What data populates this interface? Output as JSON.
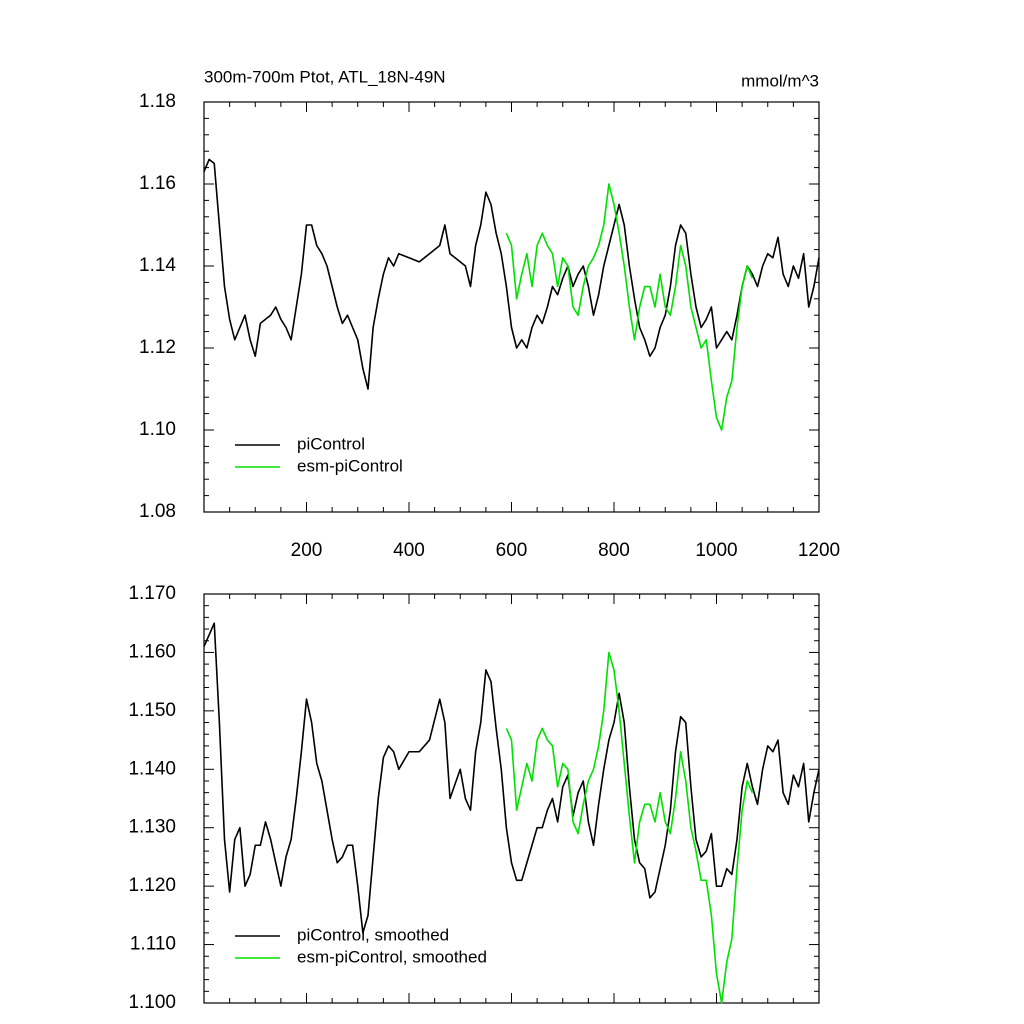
{
  "chart_data": [
    {
      "type": "line",
      "title": "300m-700m Ptot, ATL_18N-49N",
      "units": "mmol/m^3",
      "xlim": [
        0,
        1200
      ],
      "xticks": [
        200,
        400,
        600,
        800,
        1000,
        1200
      ],
      "ylim": [
        1.08,
        1.18
      ],
      "yticks": [
        {
          "value": 1.08,
          "label": "1.08"
        },
        {
          "value": 1.1,
          "label": "1.10"
        },
        1.12,
        1.14,
        1.16,
        1.18
      ],
      "legend": "lower left",
      "series": [
        {
          "name": "piControl",
          "color": "#000000",
          "x": [
            0,
            10,
            20,
            30,
            40,
            50,
            60,
            70,
            80,
            90,
            100,
            110,
            120,
            130,
            140,
            150,
            160,
            170,
            180,
            190,
            200,
            210,
            220,
            230,
            240,
            250,
            260,
            270,
            280,
            290,
            300,
            310,
            320,
            330,
            340,
            350,
            360,
            370,
            380,
            400,
            420,
            440,
            460,
            470,
            480,
            500,
            510,
            520,
            530,
            540,
            550,
            560,
            570,
            580,
            590,
            600,
            610,
            620,
            630,
            640,
            650,
            660,
            670,
            680,
            690,
            700,
            710,
            720,
            730,
            740,
            750,
            760,
            770,
            780,
            790,
            800,
            810,
            820,
            830,
            840,
            850,
            860,
            870,
            880,
            890,
            900,
            910,
            920,
            930,
            940,
            950,
            960,
            970,
            980,
            990,
            1000,
            1010,
            1020,
            1030,
            1040,
            1050,
            1060,
            1070,
            1080,
            1090,
            1100,
            1110,
            1120,
            1130,
            1140,
            1150,
            1160,
            1170,
            1180,
            1190,
            1200
          ],
          "values": [
            1.163,
            1.166,
            1.165,
            1.15,
            1.135,
            1.127,
            1.122,
            1.125,
            1.128,
            1.122,
            1.118,
            1.126,
            1.127,
            1.128,
            1.13,
            1.127,
            1.125,
            1.122,
            1.13,
            1.138,
            1.15,
            1.15,
            1.145,
            1.143,
            1.14,
            1.135,
            1.13,
            1.126,
            1.128,
            1.125,
            1.122,
            1.115,
            1.11,
            1.125,
            1.132,
            1.138,
            1.142,
            1.14,
            1.143,
            1.142,
            1.141,
            1.143,
            1.145,
            1.15,
            1.143,
            1.141,
            1.14,
            1.135,
            1.145,
            1.15,
            1.158,
            1.155,
            1.148,
            1.143,
            1.135,
            1.125,
            1.12,
            1.122,
            1.12,
            1.125,
            1.128,
            1.126,
            1.13,
            1.135,
            1.133,
            1.137,
            1.14,
            1.135,
            1.138,
            1.14,
            1.135,
            1.128,
            1.133,
            1.14,
            1.145,
            1.15,
            1.155,
            1.15,
            1.14,
            1.132,
            1.125,
            1.122,
            1.118,
            1.12,
            1.125,
            1.128,
            1.135,
            1.145,
            1.15,
            1.148,
            1.138,
            1.13,
            1.125,
            1.127,
            1.13,
            1.12,
            1.122,
            1.124,
            1.122,
            1.128,
            1.135,
            1.14,
            1.138,
            1.135,
            1.14,
            1.143,
            1.142,
            1.147,
            1.138,
            1.135,
            1.14,
            1.137,
            1.143,
            1.13,
            1.135,
            1.142
          ]
        },
        {
          "name": "esm-piControl",
          "color": "#00e000",
          "x": [
            590,
            600,
            610,
            620,
            630,
            640,
            650,
            660,
            670,
            680,
            690,
            700,
            710,
            720,
            730,
            740,
            750,
            760,
            770,
            780,
            790,
            800,
            810,
            820,
            830,
            840,
            850,
            860,
            870,
            880,
            890,
            900,
            910,
            920,
            930,
            940,
            950,
            960,
            970,
            980,
            990,
            1000,
            1010,
            1020,
            1030,
            1040,
            1050,
            1060,
            1070
          ],
          "values": [
            1.148,
            1.145,
            1.132,
            1.138,
            1.143,
            1.135,
            1.145,
            1.148,
            1.145,
            1.143,
            1.135,
            1.142,
            1.14,
            1.13,
            1.128,
            1.135,
            1.14,
            1.142,
            1.145,
            1.15,
            1.16,
            1.155,
            1.148,
            1.14,
            1.13,
            1.122,
            1.13,
            1.135,
            1.135,
            1.13,
            1.138,
            1.13,
            1.128,
            1.135,
            1.145,
            1.14,
            1.13,
            1.125,
            1.12,
            1.122,
            1.112,
            1.103,
            1.1,
            1.108,
            1.112,
            1.125,
            1.135,
            1.14,
            1.137
          ]
        }
      ]
    },
    {
      "type": "line",
      "xlim": [
        0,
        1200
      ],
      "ylim": [
        1.1,
        1.17
      ],
      "yticks": [
        {
          "value": 1.1,
          "label": "1.100"
        },
        {
          "value": 1.11,
          "label": "1.110"
        },
        {
          "value": 1.12,
          "label": "1.120"
        },
        {
          "value": 1.13,
          "label": "1.130"
        },
        {
          "value": 1.14,
          "label": "1.140"
        },
        {
          "value": 1.15,
          "label": "1.150"
        },
        {
          "value": 1.16,
          "label": "1.160"
        },
        {
          "value": 1.17,
          "label": "1.170"
        }
      ],
      "legend": "lower left",
      "series": [
        {
          "name": "piControl, smoothed",
          "color": "#000000",
          "x": [
            0,
            10,
            20,
            30,
            40,
            50,
            60,
            70,
            80,
            90,
            100,
            110,
            120,
            130,
            140,
            150,
            160,
            170,
            180,
            190,
            200,
            210,
            220,
            230,
            240,
            250,
            260,
            270,
            280,
            290,
            300,
            310,
            320,
            330,
            340,
            350,
            360,
            370,
            380,
            400,
            420,
            440,
            460,
            470,
            480,
            500,
            510,
            520,
            530,
            540,
            550,
            560,
            570,
            580,
            590,
            600,
            610,
            620,
            630,
            640,
            650,
            660,
            670,
            680,
            690,
            700,
            710,
            720,
            730,
            740,
            750,
            760,
            770,
            780,
            790,
            800,
            810,
            820,
            830,
            840,
            850,
            860,
            870,
            880,
            890,
            900,
            910,
            920,
            930,
            940,
            950,
            960,
            970,
            980,
            990,
            1000,
            1010,
            1020,
            1030,
            1040,
            1050,
            1060,
            1070,
            1080,
            1090,
            1100,
            1110,
            1120,
            1130,
            1140,
            1150,
            1160,
            1170,
            1180,
            1190,
            1200
          ],
          "values": [
            1.161,
            1.163,
            1.165,
            1.148,
            1.128,
            1.119,
            1.128,
            1.13,
            1.12,
            1.122,
            1.127,
            1.127,
            1.131,
            1.128,
            1.124,
            1.12,
            1.125,
            1.128,
            1.135,
            1.143,
            1.152,
            1.148,
            1.141,
            1.138,
            1.133,
            1.128,
            1.124,
            1.125,
            1.127,
            1.127,
            1.12,
            1.112,
            1.115,
            1.125,
            1.135,
            1.142,
            1.144,
            1.143,
            1.14,
            1.143,
            1.143,
            1.145,
            1.152,
            1.148,
            1.135,
            1.14,
            1.135,
            1.133,
            1.143,
            1.148,
            1.157,
            1.155,
            1.147,
            1.14,
            1.13,
            1.124,
            1.121,
            1.121,
            1.124,
            1.127,
            1.13,
            1.13,
            1.133,
            1.135,
            1.131,
            1.137,
            1.139,
            1.132,
            1.136,
            1.138,
            1.131,
            1.127,
            1.134,
            1.14,
            1.145,
            1.148,
            1.153,
            1.148,
            1.137,
            1.128,
            1.124,
            1.123,
            1.118,
            1.119,
            1.123,
            1.127,
            1.133,
            1.143,
            1.149,
            1.148,
            1.137,
            1.128,
            1.125,
            1.126,
            1.129,
            1.12,
            1.12,
            1.123,
            1.122,
            1.128,
            1.137,
            1.141,
            1.137,
            1.134,
            1.14,
            1.144,
            1.143,
            1.145,
            1.136,
            1.134,
            1.139,
            1.137,
            1.141,
            1.131,
            1.136,
            1.14
          ]
        },
        {
          "name": "esm-piControl, smoothed",
          "color": "#00e000",
          "x": [
            590,
            600,
            610,
            620,
            630,
            640,
            650,
            660,
            670,
            680,
            690,
            700,
            710,
            720,
            730,
            740,
            750,
            760,
            770,
            780,
            790,
            800,
            810,
            820,
            830,
            840,
            850,
            860,
            870,
            880,
            890,
            900,
            910,
            920,
            930,
            940,
            950,
            960,
            970,
            980,
            990,
            1000,
            1010,
            1020,
            1030,
            1040,
            1050,
            1060,
            1070
          ],
          "values": [
            1.147,
            1.145,
            1.133,
            1.137,
            1.141,
            1.138,
            1.145,
            1.147,
            1.145,
            1.144,
            1.137,
            1.141,
            1.14,
            1.131,
            1.129,
            1.134,
            1.138,
            1.14,
            1.144,
            1.15,
            1.16,
            1.157,
            1.15,
            1.141,
            1.132,
            1.124,
            1.131,
            1.134,
            1.134,
            1.131,
            1.136,
            1.131,
            1.129,
            1.135,
            1.143,
            1.138,
            1.13,
            1.126,
            1.121,
            1.121,
            1.115,
            1.105,
            1.1,
            1.107,
            1.111,
            1.123,
            1.133,
            1.138,
            1.136
          ]
        }
      ]
    }
  ]
}
